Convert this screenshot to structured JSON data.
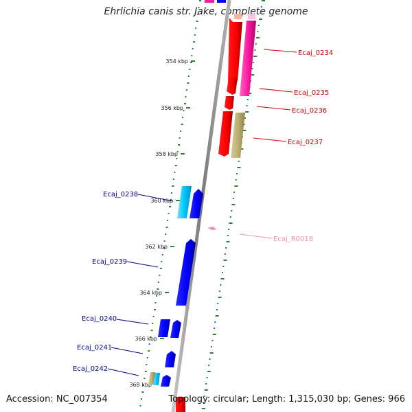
{
  "title": "Ehrlichia canis str. Jake, complete genome",
  "accession": "Accession: NC_007354",
  "topology": "Topology: circular; Length: 1,315,030 bp; Genes: 966",
  "kbp_ticks": [
    "354 kbp",
    "356 kbp",
    "358 kbp",
    "360 kbp",
    "362 kbp",
    "364 kbp",
    "366 kbp",
    "368 kbp"
  ],
  "genes": [
    {
      "id": "Ecaj_0234",
      "strand": "forward",
      "color": "#cc0000"
    },
    {
      "id": "Ecaj_0235",
      "strand": "forward",
      "color": "#cc0000"
    },
    {
      "id": "Ecaj_0236",
      "strand": "forward",
      "color": "#cc0000"
    },
    {
      "id": "Ecaj_0237",
      "strand": "forward",
      "color": "#cc0000"
    },
    {
      "id": "Ecaj_R0018",
      "strand": "forward",
      "color": "#f090b8"
    },
    {
      "id": "Ecaj_0238",
      "strand": "reverse",
      "color": "#00008b"
    },
    {
      "id": "Ecaj_0239",
      "strand": "reverse",
      "color": "#00008b"
    },
    {
      "id": "Ecaj_0240",
      "strand": "reverse",
      "color": "#00008b"
    },
    {
      "id": "Ecaj_0241",
      "strand": "reverse",
      "color": "#00008b"
    },
    {
      "id": "Ecaj_0242",
      "strand": "reverse",
      "color": "#00008b"
    }
  ],
  "colors": {
    "forward_label": "#cc0000",
    "reverse_label": "#00008b",
    "rna_label": "#f090b8",
    "gc_ticks": "#2e7d32",
    "backbone": "#8c8c8c"
  }
}
